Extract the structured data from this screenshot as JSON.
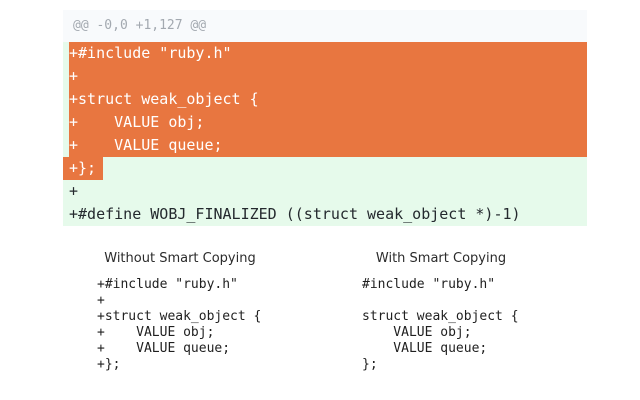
{
  "diff": {
    "hunk_header": "@@ -0,0 +1,127 @@",
    "lines": [
      {
        "text": "+#include \"ruby.h\"",
        "selected": true
      },
      {
        "text": "+",
        "selected": true
      },
      {
        "text": "+struct weak_object {",
        "selected": true
      },
      {
        "text": "+    VALUE obj;",
        "selected": true
      },
      {
        "text": "+    VALUE queue;",
        "selected": true
      },
      {
        "text": "+};",
        "selected": "partial"
      },
      {
        "text": "+",
        "selected": false
      },
      {
        "text": "+#define WOBJ_FINALIZED ((struct weak_object *)-1)",
        "selected": false
      }
    ]
  },
  "comparison": {
    "left": {
      "title": "Without Smart Copying",
      "code": [
        "+#include \"ruby.h\"",
        "+",
        "+struct weak_object {",
        "+    VALUE obj;",
        "+    VALUE queue;",
        "+};"
      ]
    },
    "right": {
      "title": "With Smart Copying",
      "code": [
        "#include \"ruby.h\"",
        "",
        "struct weak_object {",
        "    VALUE obj;",
        "    VALUE queue;",
        "};"
      ]
    }
  },
  "colors": {
    "selection_orange": "#e87640",
    "diff_added_green": "#e6faeb",
    "hunk_header_bg": "#f8fafc",
    "hunk_header_text": "#a3a9b0",
    "diff_text": "#24292e",
    "selected_text": "#ffffff"
  }
}
